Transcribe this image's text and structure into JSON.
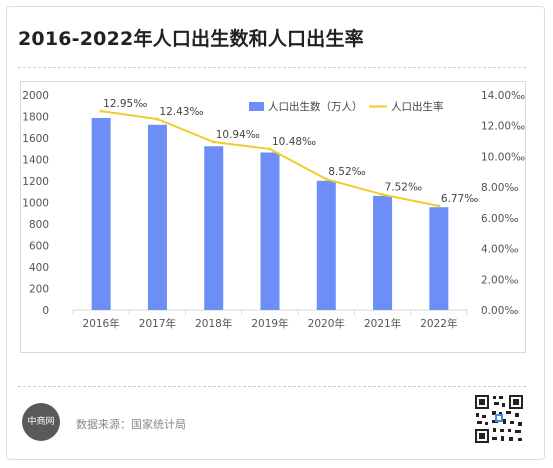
{
  "title": "2016-2022年人口出生数和人口出生率",
  "source_label": "数据来源：国家统计局",
  "logo_text": "中商网",
  "colors": {
    "bar": "#6d8ff5",
    "line": "#f2cc2e",
    "axis": "#d9d9d9",
    "text": "#555555"
  },
  "chart_data": {
    "type": "bar",
    "categories": [
      "2016年",
      "2017年",
      "2018年",
      "2019年",
      "2020年",
      "2021年",
      "2022年"
    ],
    "series": [
      {
        "name": "人口出生数（万人）",
        "type": "bar",
        "axis": "left",
        "values": [
          1786,
          1723,
          1523,
          1465,
          1202,
          1062,
          956
        ]
      },
      {
        "name": "人口出生率",
        "type": "line",
        "axis": "right",
        "values": [
          12.95,
          12.43,
          10.94,
          10.48,
          8.52,
          7.52,
          6.77
        ],
        "labels": [
          "12.95‰",
          "12.43‰",
          "10.94‰",
          "10.48‰",
          "8.52‰",
          "7.52‰",
          "6.77‰"
        ]
      }
    ],
    "ylim_left": [
      0,
      2000
    ],
    "yticks_left": [
      "0",
      "200",
      "400",
      "600",
      "800",
      "1000",
      "1200",
      "1400",
      "1600",
      "1800",
      "2000"
    ],
    "ylim_right": [
      0,
      14
    ],
    "yticks_right": [
      "0.00‰",
      "2.00‰",
      "4.00‰",
      "6.00‰",
      "8.00‰",
      "10.00‰",
      "12.00‰",
      "14.00‰"
    ],
    "legend_position": "top-right",
    "grid": false
  }
}
